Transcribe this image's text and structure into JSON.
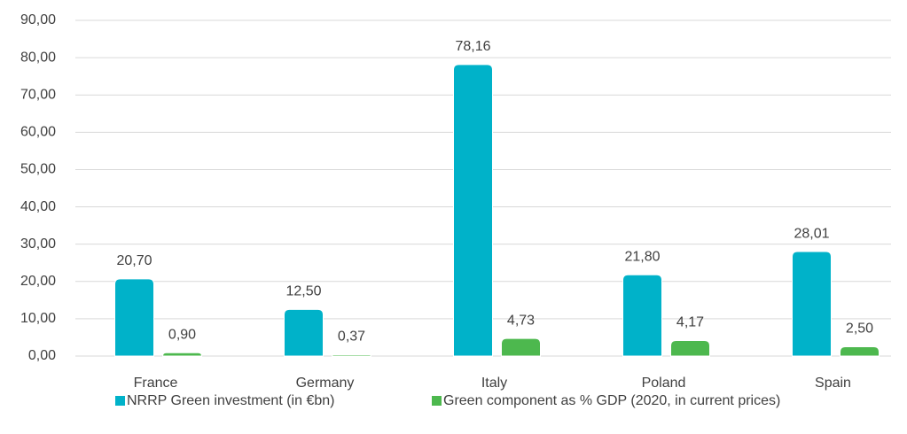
{
  "chart_data": {
    "type": "bar",
    "categories": [
      "France",
      "Germany",
      "Italy",
      "Poland",
      "Spain"
    ],
    "series": [
      {
        "name": "NRRP Green investment (in €bn)",
        "color": "#00b2c9",
        "values": [
          20.7,
          12.5,
          78.16,
          21.8,
          28.01
        ],
        "value_labels": [
          "20,70",
          "12,50",
          "78,16",
          "21,80",
          "28,01"
        ]
      },
      {
        "name": "Green component as % GDP (2020, in current prices)",
        "color": "#4db84e",
        "values": [
          0.9,
          0.37,
          4.73,
          4.17,
          2.5
        ],
        "value_labels": [
          "0,90",
          "0,37",
          "4,73",
          "4,17",
          "2,50"
        ]
      }
    ],
    "ylim": [
      0,
      90
    ],
    "yticks": [
      {
        "value": 0,
        "label": "0,00"
      },
      {
        "value": 10,
        "label": "10,00"
      },
      {
        "value": 20,
        "label": "20,00"
      },
      {
        "value": 30,
        "label": "30,00"
      },
      {
        "value": 40,
        "label": "40,00"
      },
      {
        "value": 50,
        "label": "50,00"
      },
      {
        "value": 60,
        "label": "60,00"
      },
      {
        "value": 70,
        "label": "70,00"
      },
      {
        "value": 80,
        "label": "80,00"
      },
      {
        "value": 90,
        "label": "90,00"
      }
    ],
    "grid": true,
    "legend": "bottom"
  }
}
